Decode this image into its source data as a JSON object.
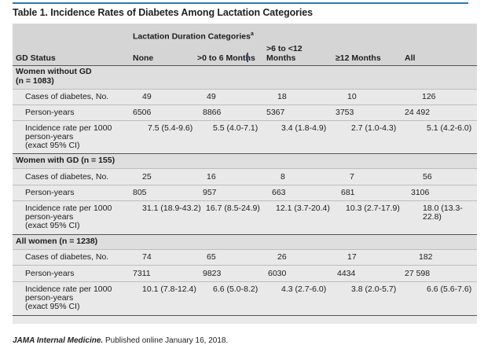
{
  "title": "Table 1. Incidence Rates of Diabetes Among Lactation Categories",
  "header": {
    "group_label": "Lactation Duration Categories",
    "group_sup": "a",
    "row_header": "GD Status",
    "columns": [
      "None",
      ">0 to 6 Months",
      ">6 to <12",
      "Months",
      "≥12 Months",
      "All"
    ]
  },
  "sections": [
    {
      "label": "Women without GD",
      "label2": "(n = 1083)",
      "rows": [
        {
          "label": "Cases of diabetes, No.",
          "values": [
            "49",
            "49",
            "18",
            "10",
            "126"
          ]
        },
        {
          "label": "Person-years",
          "values": [
            "6506",
            "8866",
            "5367",
            "3753",
            "24 492"
          ]
        },
        {
          "label": "Incidence rate per 1000",
          "label2": "person-years",
          "label3": "(exact 95% CI)",
          "values": [
            "7.5 (5.4-9.6)",
            "5.5 (4.0-7.1)",
            "3.4 (1.8-4.9)",
            "2.7 (1.0-4.3)",
            "5.1 (4.2-6.0)"
          ]
        }
      ]
    },
    {
      "label": "Women with GD (n = 155)",
      "rows": [
        {
          "label": "Cases of diabetes, No.",
          "values": [
            "25",
            "16",
            "8",
            "7",
            "56"
          ]
        },
        {
          "label": "Person-years",
          "values": [
            "805",
            "957",
            "663",
            "681",
            "3106"
          ]
        },
        {
          "label": "Incidence rate per 1000",
          "label2": "person-years",
          "label3": "(exact 95% CI)",
          "values": [
            "31.1 (18.9-43.2)",
            "16.7 (8.5-24.9)",
            "12.1 (3.7-20.4)",
            "10.3 (2.7-17.9)",
            "18.0 (13.3-",
            "22.8)"
          ]
        }
      ]
    },
    {
      "label": "All women (n = 1238)",
      "rows": [
        {
          "label": "Cases of diabetes, No.",
          "values": [
            "74",
            "65",
            "26",
            "17",
            "182"
          ]
        },
        {
          "label": "Person-years",
          "values": [
            "7311",
            "9823",
            "6030",
            "4434",
            "27 598"
          ]
        },
        {
          "label": "Incidence rate per 1000",
          "label2": "person-years",
          "label3": "(exact 95% CI)",
          "values": [
            "10.1 (7.8-12.4)",
            "6.6 (5.0-8.2)",
            "4.3 (2.7-6.0)",
            "3.8 (2.0-5.7)",
            "6.6 (5.6-7.6)"
          ]
        }
      ]
    }
  ],
  "footer": {
    "journal": "JAMA Internal Medicine.",
    "published": "Published online January 16, 2018."
  },
  "colors": {
    "accent_rule": "#1a7cc0",
    "table_bg": "#e9e9e9",
    "header_bg": "#d5d5d5"
  }
}
